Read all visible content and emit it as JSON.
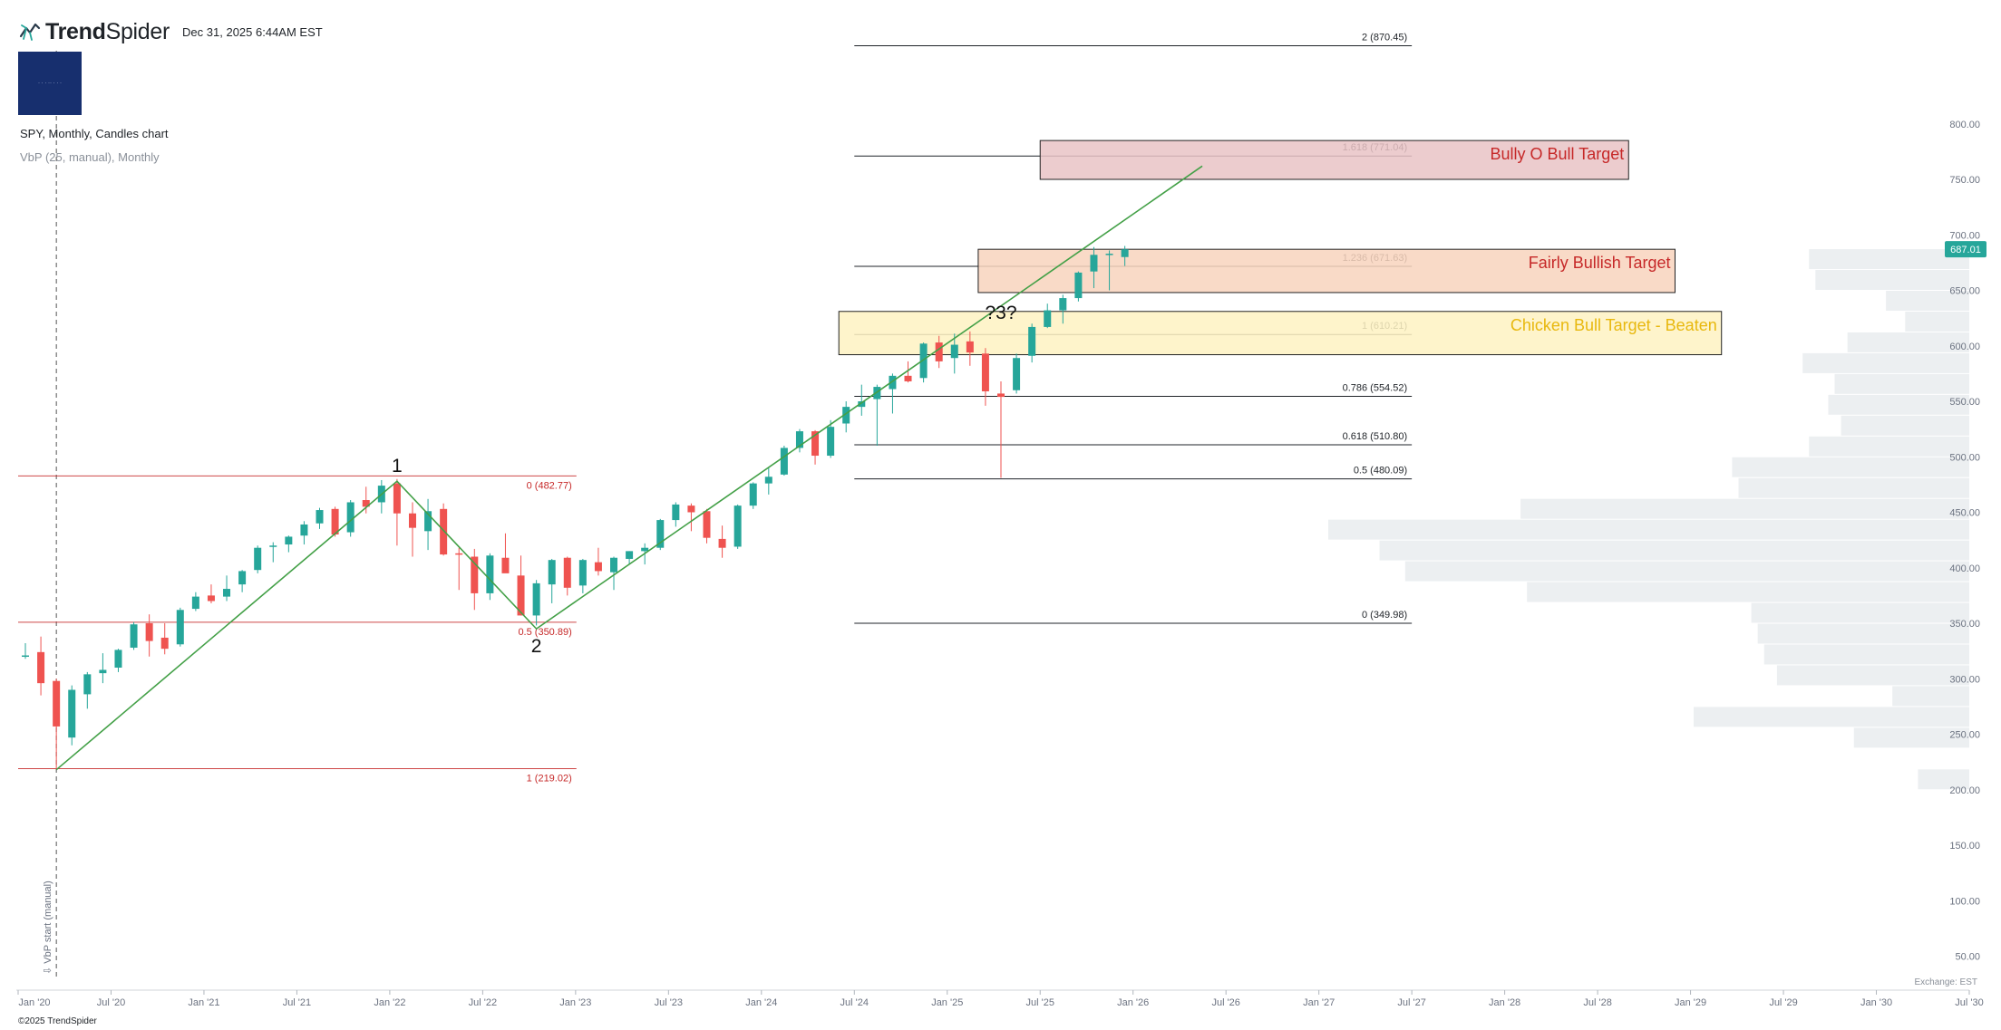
{
  "header": {
    "brand_prefix": "Trend",
    "brand_suffix": "Spider",
    "timestamp": "Dec 31, 2025 6:44AM EST"
  },
  "chart_title": "SPY, Monthly, Candles chart",
  "indicator_title": "VbP (25, manual), Monthly",
  "exchange_label": "Exchange: EST",
  "copyright": "©2025 TrendSpider",
  "colors": {
    "up": "#26a69a",
    "down": "#ef5350",
    "trend_line": "#43a047",
    "fib_left": "#c62828",
    "fib_right": "#1f2328",
    "volume_profile": "#eceff1",
    "last_price_badge": "#26a69a"
  },
  "chart_data": {
    "type": "candlestick",
    "symbol": "SPY",
    "interval": "Monthly",
    "y_axis": {
      "min": 30,
      "max": 830,
      "ticks": [
        "800.00",
        "750.00",
        "700.00",
        "650.00",
        "600.00",
        "550.00",
        "500.00",
        "450.00",
        "400.00",
        "350.00",
        "300.00",
        "250.00",
        "200.00",
        "150.00",
        "100.00",
        "50.00"
      ]
    },
    "x_axis": {
      "range": [
        "2020-01",
        "2030-07"
      ],
      "ticks": [
        {
          "label": "Jan '20",
          "date": "2020-01"
        },
        {
          "label": "Jul '20",
          "date": "2020-07"
        },
        {
          "label": "Jan '21",
          "date": "2021-01"
        },
        {
          "label": "Jul '21",
          "date": "2021-07"
        },
        {
          "label": "Jan '22",
          "date": "2022-01"
        },
        {
          "label": "Jul '22",
          "date": "2022-07"
        },
        {
          "label": "Jan '23",
          "date": "2023-01"
        },
        {
          "label": "Jul '23",
          "date": "2023-07"
        },
        {
          "label": "Jan '24",
          "date": "2024-01"
        },
        {
          "label": "Jul '24",
          "date": "2024-07"
        },
        {
          "label": "Jan '25",
          "date": "2025-01"
        },
        {
          "label": "Jul '25",
          "date": "2025-07"
        },
        {
          "label": "Jan '26",
          "date": "2026-01"
        },
        {
          "label": "Jul '26",
          "date": "2026-07"
        },
        {
          "label": "Jan '27",
          "date": "2027-01"
        },
        {
          "label": "Jul '27",
          "date": "2027-07"
        },
        {
          "label": "Jan '28",
          "date": "2028-01"
        },
        {
          "label": "Jul '28",
          "date": "2028-07"
        },
        {
          "label": "Jan '29",
          "date": "2029-01"
        },
        {
          "label": "Jul '29",
          "date": "2029-07"
        },
        {
          "label": "Jan '30",
          "date": "2030-01"
        },
        {
          "label": "Jul '30",
          "date": "2030-07"
        }
      ]
    },
    "last_price": "687.01",
    "candles": [
      {
        "t": "2020-01",
        "o": 321,
        "h": 332,
        "l": 318,
        "c": 321
      },
      {
        "t": "2020-02",
        "o": 324,
        "h": 338,
        "l": 285,
        "c": 296
      },
      {
        "t": "2020-03",
        "o": 298,
        "h": 300,
        "l": 218,
        "c": 257
      },
      {
        "t": "2020-04",
        "o": 247,
        "h": 294,
        "l": 240,
        "c": 290
      },
      {
        "t": "2020-05",
        "o": 286,
        "h": 306,
        "l": 273,
        "c": 304
      },
      {
        "t": "2020-06",
        "o": 305,
        "h": 323,
        "l": 296,
        "c": 308
      },
      {
        "t": "2020-07",
        "o": 310,
        "h": 327,
        "l": 306,
        "c": 326
      },
      {
        "t": "2020-08",
        "o": 328,
        "h": 351,
        "l": 326,
        "c": 349
      },
      {
        "t": "2020-09",
        "o": 350,
        "h": 358,
        "l": 320,
        "c": 334
      },
      {
        "t": "2020-10",
        "o": 337,
        "h": 350,
        "l": 322,
        "c": 327
      },
      {
        "t": "2020-11",
        "o": 331,
        "h": 364,
        "l": 329,
        "c": 362
      },
      {
        "t": "2020-12",
        "o": 363,
        "h": 378,
        "l": 361,
        "c": 374
      },
      {
        "t": "2021-01",
        "o": 375,
        "h": 385,
        "l": 368,
        "c": 370
      },
      {
        "t": "2021-02",
        "o": 374,
        "h": 393,
        "l": 370,
        "c": 381
      },
      {
        "t": "2021-03",
        "o": 385,
        "h": 398,
        "l": 378,
        "c": 397
      },
      {
        "t": "2021-04",
        "o": 398,
        "h": 420,
        "l": 395,
        "c": 418
      },
      {
        "t": "2021-05",
        "o": 419,
        "h": 423,
        "l": 405,
        "c": 420
      },
      {
        "t": "2021-06",
        "o": 421,
        "h": 429,
        "l": 414,
        "c": 428
      },
      {
        "t": "2021-07",
        "o": 429,
        "h": 442,
        "l": 421,
        "c": 439
      },
      {
        "t": "2021-08",
        "o": 440,
        "h": 454,
        "l": 435,
        "c": 452
      },
      {
        "t": "2021-09",
        "o": 453,
        "h": 455,
        "l": 428,
        "c": 430
      },
      {
        "t": "2021-10",
        "o": 432,
        "h": 461,
        "l": 428,
        "c": 459
      },
      {
        "t": "2021-11",
        "o": 461,
        "h": 473,
        "l": 449,
        "c": 455
      },
      {
        "t": "2021-12",
        "o": 459,
        "h": 479,
        "l": 449,
        "c": 474
      },
      {
        "t": "2022-01",
        "o": 476,
        "h": 480,
        "l": 420,
        "c": 449
      },
      {
        "t": "2022-02",
        "o": 449,
        "h": 459,
        "l": 410,
        "c": 436
      },
      {
        "t": "2022-03",
        "o": 433,
        "h": 462,
        "l": 416,
        "c": 451
      },
      {
        "t": "2022-04",
        "o": 453,
        "h": 458,
        "l": 411,
        "c": 412
      },
      {
        "t": "2022-05",
        "o": 413,
        "h": 418,
        "l": 380,
        "c": 412
      },
      {
        "t": "2022-06",
        "o": 410,
        "h": 417,
        "l": 362,
        "c": 377
      },
      {
        "t": "2022-07",
        "o": 377,
        "h": 413,
        "l": 371,
        "c": 411
      },
      {
        "t": "2022-08",
        "o": 409,
        "h": 431,
        "l": 396,
        "c": 395
      },
      {
        "t": "2022-09",
        "o": 393,
        "h": 411,
        "l": 357,
        "c": 357
      },
      {
        "t": "2022-10",
        "o": 357,
        "h": 389,
        "l": 348,
        "c": 386
      },
      {
        "t": "2022-11",
        "o": 385,
        "h": 408,
        "l": 368,
        "c": 407
      },
      {
        "t": "2022-12",
        "o": 409,
        "h": 410,
        "l": 375,
        "c": 382
      },
      {
        "t": "2023-01",
        "o": 384,
        "h": 408,
        "l": 377,
        "c": 407
      },
      {
        "t": "2023-02",
        "o": 405,
        "h": 418,
        "l": 393,
        "c": 397
      },
      {
        "t": "2023-03",
        "o": 396,
        "h": 410,
        "l": 380,
        "c": 409
      },
      {
        "t": "2023-04",
        "o": 408,
        "h": 415,
        "l": 403,
        "c": 415
      },
      {
        "t": "2023-05",
        "o": 415,
        "h": 422,
        "l": 403,
        "c": 418
      },
      {
        "t": "2023-06",
        "o": 418,
        "h": 444,
        "l": 416,
        "c": 443
      },
      {
        "t": "2023-07",
        "o": 443,
        "h": 459,
        "l": 437,
        "c": 457
      },
      {
        "t": "2023-08",
        "o": 456,
        "h": 458,
        "l": 433,
        "c": 450
      },
      {
        "t": "2023-09",
        "o": 451,
        "h": 453,
        "l": 422,
        "c": 427
      },
      {
        "t": "2023-10",
        "o": 426,
        "h": 438,
        "l": 409,
        "c": 418
      },
      {
        "t": "2023-11",
        "o": 419,
        "h": 457,
        "l": 417,
        "c": 456
      },
      {
        "t": "2023-12",
        "o": 456,
        "h": 477,
        "l": 453,
        "c": 476
      },
      {
        "t": "2024-01",
        "o": 476,
        "h": 490,
        "l": 466,
        "c": 482
      },
      {
        "t": "2024-02",
        "o": 484,
        "h": 510,
        "l": 483,
        "c": 508
      },
      {
        "t": "2024-03",
        "o": 508,
        "h": 525,
        "l": 504,
        "c": 523
      },
      {
        "t": "2024-04",
        "o": 523,
        "h": 524,
        "l": 493,
        "c": 501
      },
      {
        "t": "2024-05",
        "o": 501,
        "h": 533,
        "l": 499,
        "c": 527
      },
      {
        "t": "2024-06",
        "o": 530,
        "h": 550,
        "l": 522,
        "c": 545
      },
      {
        "t": "2024-07",
        "o": 545,
        "h": 565,
        "l": 537,
        "c": 550
      },
      {
        "t": "2024-08",
        "o": 552,
        "h": 565,
        "l": 510,
        "c": 563
      },
      {
        "t": "2024-09",
        "o": 561,
        "h": 575,
        "l": 539,
        "c": 573
      },
      {
        "t": "2024-10",
        "o": 573,
        "h": 586,
        "l": 567,
        "c": 568
      },
      {
        "t": "2024-11",
        "o": 571,
        "h": 603,
        "l": 567,
        "c": 602
      },
      {
        "t": "2024-12",
        "o": 603,
        "h": 609,
        "l": 580,
        "c": 586
      },
      {
        "t": "2025-01",
        "o": 589,
        "h": 611,
        "l": 575,
        "c": 601
      },
      {
        "t": "2025-02",
        "o": 604,
        "h": 613,
        "l": 582,
        "c": 594
      },
      {
        "t": "2025-03",
        "o": 593,
        "h": 598,
        "l": 546,
        "c": 559
      },
      {
        "t": "2025-04",
        "o": 557,
        "h": 568,
        "l": 481,
        "c": 554
      },
      {
        "t": "2025-05",
        "o": 560,
        "h": 593,
        "l": 557,
        "c": 589
      },
      {
        "t": "2025-06",
        "o": 591,
        "h": 620,
        "l": 585,
        "c": 617
      },
      {
        "t": "2025-07",
        "o": 617,
        "h": 638,
        "l": 616,
        "c": 632
      },
      {
        "t": "2025-08",
        "o": 632,
        "h": 646,
        "l": 620,
        "c": 643
      },
      {
        "t": "2025-09",
        "o": 643,
        "h": 667,
        "l": 640,
        "c": 666
      },
      {
        "t": "2025-10",
        "o": 667,
        "h": 689,
        "l": 652,
        "c": 682
      },
      {
        "t": "2025-11",
        "o": 683,
        "h": 686,
        "l": 650,
        "c": 683
      },
      {
        "t": "2025-12",
        "o": 680,
        "h": 690,
        "l": 672,
        "c": 687
      }
    ],
    "fib_left": {
      "levels": [
        {
          "ratio": "0",
          "price": 482.77,
          "label": "0 (482.77)"
        },
        {
          "ratio": "0.5",
          "price": 350.89,
          "label": "0.5 (350.89)"
        },
        {
          "ratio": "1",
          "price": 219.02,
          "label": "1 (219.02)"
        }
      ],
      "x_range": [
        "2020-01",
        "2022-12"
      ]
    },
    "fib_right": {
      "levels": [
        {
          "price": 870.45,
          "label": "2 (870.45)"
        },
        {
          "price": 771.04,
          "label": "1.618 (771.04)"
        },
        {
          "price": 671.63,
          "label": "1.236 (671.63)"
        },
        {
          "price": 610.21,
          "label": "1 (610.21)"
        },
        {
          "price": 554.52,
          "label": "0.786 (554.52)"
        },
        {
          "price": 510.8,
          "label": "0.618 (510.80)"
        },
        {
          "price": 480.09,
          "label": "0.5 (480.09)"
        },
        {
          "price": 349.98,
          "label": "0 (349.98)"
        }
      ],
      "x_range": [
        "2024-07",
        "2027-07"
      ]
    },
    "zones": [
      {
        "label": "Bully O Bull Target",
        "top": 785,
        "bottom": 750,
        "from": "2025-07",
        "to": "2028-09",
        "fill": "#e9c3c5",
        "stroke": "#222222",
        "text_color": "#c62828"
      },
      {
        "label": "Fairly Bullish Target",
        "top": 687,
        "bottom": 648,
        "from": "2025-03",
        "to": "2028-12",
        "fill": "#f8d3bd",
        "stroke": "#222222",
        "text_color": "#c62828"
      },
      {
        "label": "Chicken Bull Target - Beaten",
        "top": 631,
        "bottom": 592,
        "from": "2024-06",
        "to": "2029-03",
        "fill": "#fef2c2",
        "stroke": "#222222",
        "text_color": "#e8b80e"
      }
    ],
    "trend_lines": [
      {
        "points": [
          {
            "t": "2020-03",
            "p": 218
          },
          {
            "t": "2022-01",
            "p": 478
          },
          {
            "t": "2022-10",
            "p": 345
          },
          {
            "t": "2026-05",
            "p": 762
          }
        ]
      }
    ],
    "annotations": [
      {
        "text": "1",
        "t": "2022-01",
        "p": 478,
        "position": "above"
      },
      {
        "text": "2",
        "t": "2022-10",
        "p": 345,
        "position": "below"
      },
      {
        "text": "?3?",
        "t": "2025-04",
        "p": 616,
        "position": "above"
      }
    ],
    "vbp_start_label": "⇩ VbP start (manual)",
    "vbp_start_date": "2020-03",
    "volume_profile": {
      "bin_size": 18.75,
      "bins": [
        {
          "lo": 200.0,
          "hi": 218.75,
          "v": 0.08
        },
        {
          "lo": 218.75,
          "hi": 237.5,
          "v": 0.0
        },
        {
          "lo": 237.5,
          "hi": 256.25,
          "v": 0.18
        },
        {
          "lo": 256.25,
          "hi": 275.0,
          "v": 0.43
        },
        {
          "lo": 275.0,
          "hi": 293.75,
          "v": 0.12
        },
        {
          "lo": 293.75,
          "hi": 312.5,
          "v": 0.3
        },
        {
          "lo": 312.5,
          "hi": 331.25,
          "v": 0.32
        },
        {
          "lo": 331.25,
          "hi": 350.0,
          "v": 0.33
        },
        {
          "lo": 350.0,
          "hi": 368.75,
          "v": 0.34
        },
        {
          "lo": 368.75,
          "hi": 387.5,
          "v": 0.69
        },
        {
          "lo": 387.5,
          "hi": 406.25,
          "v": 0.88
        },
        {
          "lo": 406.25,
          "hi": 425.0,
          "v": 0.92
        },
        {
          "lo": 425.0,
          "hi": 443.75,
          "v": 1.0
        },
        {
          "lo": 443.75,
          "hi": 462.5,
          "v": 0.7
        },
        {
          "lo": 462.5,
          "hi": 481.25,
          "v": 0.36
        },
        {
          "lo": 481.25,
          "hi": 500.0,
          "v": 0.37
        },
        {
          "lo": 500.0,
          "hi": 518.75,
          "v": 0.25
        },
        {
          "lo": 518.75,
          "hi": 537.5,
          "v": 0.2
        },
        {
          "lo": 537.5,
          "hi": 556.25,
          "v": 0.22
        },
        {
          "lo": 556.25,
          "hi": 575.0,
          "v": 0.21
        },
        {
          "lo": 575.0,
          "hi": 593.75,
          "v": 0.26
        },
        {
          "lo": 593.75,
          "hi": 612.5,
          "v": 0.19
        },
        {
          "lo": 612.5,
          "hi": 631.25,
          "v": 0.1
        },
        {
          "lo": 631.25,
          "hi": 650.0,
          "v": 0.13
        },
        {
          "lo": 650.0,
          "hi": 668.75,
          "v": 0.24
        },
        {
          "lo": 668.75,
          "hi": 687.5,
          "v": 0.25
        }
      ]
    }
  }
}
